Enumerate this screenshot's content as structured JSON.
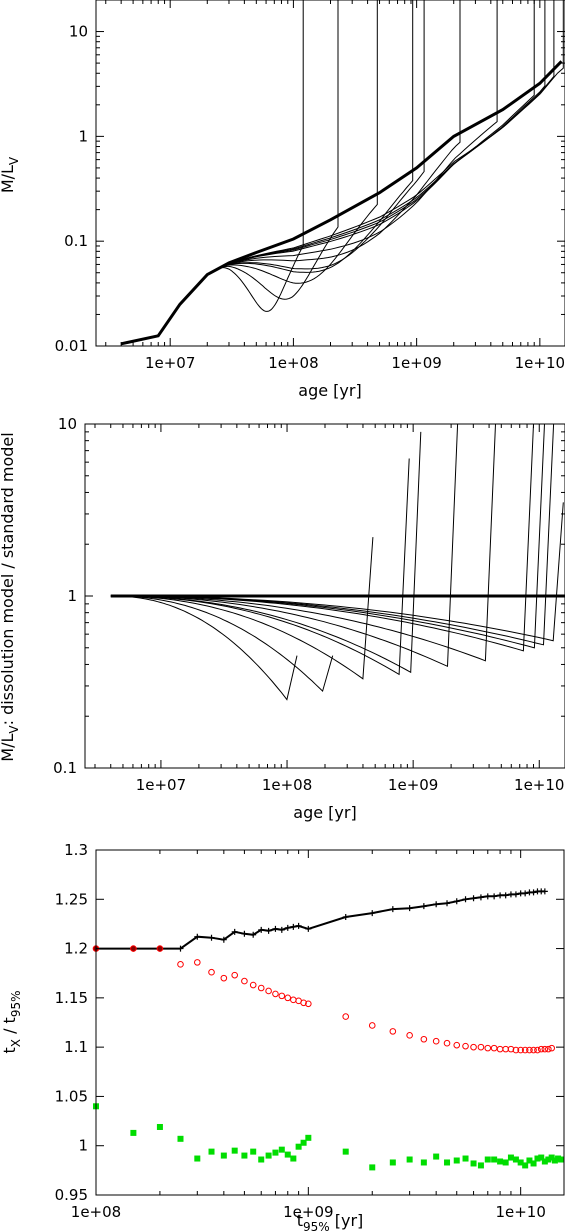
{
  "chart_data": [
    {
      "type": "line",
      "panel": "top",
      "title": "",
      "xlabel": "age [yr]",
      "ylabel_main": "M/L",
      "ylabel_sub": "V",
      "xscale": "log",
      "yscale": "log",
      "xlim": [
        2500000.0,
        16000000000.0
      ],
      "ylim": [
        0.01,
        20
      ],
      "xticks": [
        {
          "v": 10000000.0,
          "label": "1e+07"
        },
        {
          "v": 100000000.0,
          "label": "1e+08"
        },
        {
          "v": 1000000000.0,
          "label": "1e+09"
        },
        {
          "v": 10000000000.0,
          "label": "1e+10"
        }
      ],
      "yticks": [
        {
          "v": 0.01,
          "label": "0.01"
        },
        {
          "v": 0.1,
          "label": "0.1"
        },
        {
          "v": 1,
          "label": "1"
        },
        {
          "v": 10,
          "label": "10"
        }
      ],
      "base_curve": {
        "x": [
          4000000.0,
          8000000.0,
          12000000.0,
          20000000.0,
          30000000.0,
          50000000.0,
          100000000.0,
          200000000.0,
          500000000.0,
          1000000000.0,
          2000000000.0,
          5000000000.0,
          10000000000.0,
          15000000000.0
        ],
        "y": [
          0.0105,
          0.0125,
          0.025,
          0.048,
          0.062,
          0.078,
          0.105,
          0.16,
          0.29,
          0.5,
          1.0,
          1.8,
          3.2,
          5.2
        ]
      },
      "dissolution_times": [
        120000000.0,
        230000000.0,
        480000000.0,
        930000000.0,
        1150000000.0,
        2250000000.0,
        4500000000.0,
        9000000000.0,
        11000000000.0,
        13000000000.0,
        15500000000.0
      ]
    },
    {
      "type": "line",
      "panel": "middle",
      "title": "",
      "xlabel": "age [yr]",
      "ylabel_main": "M/L",
      "ylabel_sub": "V",
      "ylabel_rest": ": dissolution model / standard model",
      "xscale": "log",
      "yscale": "log",
      "xlim": [
        2500000.0,
        16000000000.0
      ],
      "ylim": [
        0.1,
        10
      ],
      "xticks": [
        {
          "v": 10000000.0,
          "label": "1e+07"
        },
        {
          "v": 100000000.0,
          "label": "1e+08"
        },
        {
          "v": 1000000000.0,
          "label": "1e+09"
        },
        {
          "v": 10000000000.0,
          "label": "1e+10"
        }
      ],
      "yticks": [
        {
          "v": 0.1,
          "label": "0.1"
        },
        {
          "v": 1,
          "label": "1"
        },
        {
          "v": 10,
          "label": "10"
        }
      ],
      "reference_line": 1,
      "ratio_minima": [
        {
          "t_diss": 120000000.0,
          "min": 0.25,
          "peak": 0.45
        },
        {
          "t_diss": 230000000.0,
          "min": 0.28,
          "peak": 0.45
        },
        {
          "t_diss": 480000000.0,
          "min": 0.33,
          "peak": 2.2
        },
        {
          "t_diss": 930000000.0,
          "min": 0.35,
          "peak": 6.3
        },
        {
          "t_diss": 1150000000.0,
          "min": 0.36,
          "peak": 9
        },
        {
          "t_diss": 2250000000.0,
          "min": 0.39,
          "peak": 10
        },
        {
          "t_diss": 4500000000.0,
          "min": 0.42,
          "peak": 10
        },
        {
          "t_diss": 9000000000.0,
          "min": 0.48,
          "peak": 10
        },
        {
          "t_diss": 11000000000.0,
          "min": 0.5,
          "peak": 10
        },
        {
          "t_diss": 13000000000.0,
          "min": 0.52,
          "peak": 10
        },
        {
          "t_diss": 15500000000.0,
          "min": 0.55,
          "peak": 3.5
        }
      ]
    },
    {
      "type": "scatter",
      "panel": "bottom",
      "title": "",
      "xlabel_main": "t",
      "xlabel_sub": "95%",
      "xlabel_rest": " [yr]",
      "ylabel_a": "t",
      "ylabel_a_sub": "X",
      "ylabel_b": " / t",
      "ylabel_b_sub": "95%",
      "xscale": "log",
      "xlim": [
        100000000.0,
        16000000000.0
      ],
      "ylim": [
        0.95,
        1.3
      ],
      "xticks": [
        {
          "v": 100000000.0,
          "label": "1e+08"
        },
        {
          "v": 1000000000.0,
          "label": "1e+09"
        },
        {
          "v": 10000000000.0,
          "label": "1e+10"
        }
      ],
      "yticks": [
        {
          "v": 0.95,
          "label": "0.95"
        },
        {
          "v": 1,
          "label": "1"
        },
        {
          "v": 1.05,
          "label": "1.05"
        },
        {
          "v": 1.1,
          "label": "1.1"
        },
        {
          "v": 1.15,
          "label": "1.15"
        },
        {
          "v": 1.2,
          "label": "1.2"
        },
        {
          "v": 1.25,
          "label": "1.25"
        },
        {
          "v": 1.3,
          "label": "1.3"
        }
      ],
      "series": [
        {
          "style": "black-line-plus",
          "color": "#000000",
          "x": [
            100000000.0,
            150000000.0,
            200000000.0,
            250000000.0,
            300000000.0,
            350000000.0,
            400000000.0,
            450000000.0,
            500000000.0,
            550000000.0,
            600000000.0,
            650000000.0,
            700000000.0,
            750000000.0,
            800000000.0,
            850000000.0,
            900000000.0,
            1000000000.0,
            1500000000.0,
            2000000000.0,
            2500000000.0,
            3000000000.0,
            3500000000.0,
            4000000000.0,
            4500000000.0,
            5000000000.0,
            5500000000.0,
            6000000000.0,
            6500000000.0,
            7000000000.0,
            7500000000.0,
            8000000000.0,
            8500000000.0,
            9000000000.0,
            9500000000.0,
            10000000000.0,
            10500000000.0,
            11000000000.0,
            11500000000.0,
            12000000000.0,
            12500000000.0,
            13000000000.0
          ],
          "y": [
            1.2,
            1.2,
            1.2,
            1.2,
            1.212,
            1.211,
            1.209,
            1.217,
            1.215,
            1.214,
            1.219,
            1.218,
            1.22,
            1.219,
            1.221,
            1.222,
            1.223,
            1.22,
            1.232,
            1.236,
            1.24,
            1.241,
            1.243,
            1.245,
            1.246,
            1.248,
            1.25,
            1.251,
            1.252,
            1.253,
            1.253,
            1.254,
            1.254,
            1.255,
            1.255,
            1.256,
            1.256,
            1.257,
            1.257,
            1.258,
            1.258,
            1.258
          ]
        },
        {
          "style": "red-open-circle",
          "color": "#ff0000",
          "x": [
            100000000.0,
            150000000.0,
            200000000.0,
            250000000.0,
            300000000.0,
            350000000.0,
            400000000.0,
            450000000.0,
            500000000.0,
            550000000.0,
            600000000.0,
            650000000.0,
            700000000.0,
            750000000.0,
            800000000.0,
            850000000.0,
            900000000.0,
            950000000.0,
            1000000000.0,
            1500000000.0,
            2000000000.0,
            2500000000.0,
            3000000000.0,
            3500000000.0,
            4000000000.0,
            4500000000.0,
            5000000000.0,
            5500000000.0,
            6000000000.0,
            6500000000.0,
            7000000000.0,
            7500000000.0,
            8000000000.0,
            8500000000.0,
            9000000000.0,
            9500000000.0,
            10000000000.0,
            10500000000.0,
            11000000000.0,
            11500000000.0,
            12000000000.0,
            12500000000.0,
            13000000000.0,
            13500000000.0,
            14000000000.0
          ],
          "y": [
            1.2,
            1.2,
            1.2,
            1.184,
            1.186,
            1.176,
            1.17,
            1.173,
            1.167,
            1.163,
            1.16,
            1.157,
            1.154,
            1.152,
            1.15,
            1.148,
            1.147,
            1.145,
            1.144,
            1.131,
            1.122,
            1.116,
            1.112,
            1.108,
            1.106,
            1.104,
            1.102,
            1.101,
            1.1,
            1.1,
            1.099,
            1.099,
            1.098,
            1.098,
            1.098,
            1.097,
            1.097,
            1.097,
            1.097,
            1.097,
            1.097,
            1.098,
            1.098,
            1.098,
            1.099
          ]
        },
        {
          "style": "green-square",
          "color": "#00dd00",
          "x": [
            100000000.0,
            150000000.0,
            200000000.0,
            250000000.0,
            300000000.0,
            350000000.0,
            400000000.0,
            450000000.0,
            500000000.0,
            550000000.0,
            600000000.0,
            650000000.0,
            700000000.0,
            750000000.0,
            800000000.0,
            850000000.0,
            900000000.0,
            950000000.0,
            1000000000.0,
            1500000000.0,
            2000000000.0,
            2500000000.0,
            3000000000.0,
            3500000000.0,
            4000000000.0,
            4500000000.0,
            5000000000.0,
            5500000000.0,
            6000000000.0,
            6500000000.0,
            7000000000.0,
            7500000000.0,
            8000000000.0,
            8500000000.0,
            9000000000.0,
            9500000000.0,
            10000000000.0,
            10500000000.0,
            11000000000.0,
            11500000000.0,
            12000000000.0,
            12500000000.0,
            13000000000.0,
            13500000000.0,
            14000000000.0,
            14500000000.0,
            15000000000.0,
            15500000000.0
          ],
          "y": [
            1.04,
            1.013,
            1.019,
            1.007,
            0.987,
            0.994,
            0.99,
            0.995,
            0.99,
            0.994,
            0.986,
            0.99,
            0.993,
            0.996,
            0.991,
            0.987,
            0.999,
            1.003,
            1.008,
            0.994,
            0.978,
            0.983,
            0.986,
            0.983,
            0.989,
            0.983,
            0.985,
            0.987,
            0.982,
            0.98,
            0.986,
            0.986,
            0.984,
            0.983,
            0.988,
            0.986,
            0.983,
            0.98,
            0.985,
            0.982,
            0.987,
            0.988,
            0.984,
            0.986,
            0.988,
            0.985,
            0.987,
            0.986
          ]
        }
      ]
    }
  ]
}
